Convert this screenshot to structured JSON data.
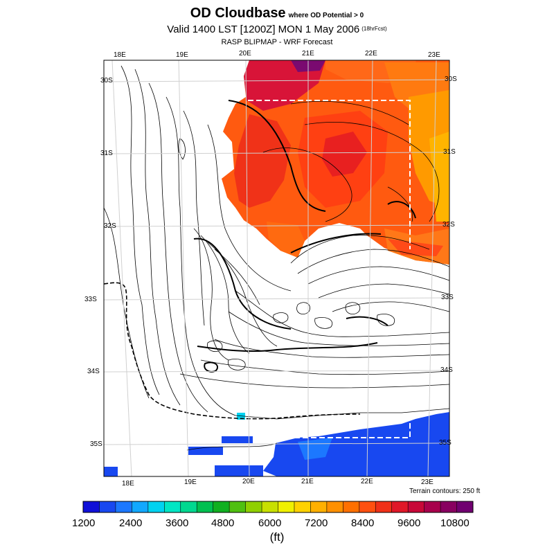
{
  "header": {
    "title": "OD Cloudbase",
    "title_note": "where OD Potential > 0",
    "valid": "Valid 1400 LST [1200Z] MON 1 May 2006",
    "valid_fcst": "(18hrFcst)",
    "model": "RASP BLIPMAP - WRF Forecast"
  },
  "map": {
    "top_lon_labels": [
      "18E",
      "19E",
      "20E",
      "21E",
      "22E",
      "23E"
    ],
    "bottom_lon_labels": [
      "18E",
      "19E",
      "20E",
      "21E",
      "22E",
      "23E"
    ],
    "left_lat_labels": [
      "30S",
      "31S",
      "32S",
      "33S",
      "34S",
      "35S"
    ],
    "right_lat_labels": [
      "30S",
      "31S",
      "32S",
      "33S",
      "34S",
      "35S"
    ],
    "terrain_note": "Terrain contours: 250 ft"
  },
  "legend": {
    "tick_labels": [
      "1200",
      "2400",
      "3600",
      "4800",
      "6000",
      "7200",
      "8400",
      "9600",
      "10800"
    ],
    "units": "(ft)",
    "colors": [
      "#1010d8",
      "#1848f0",
      "#1c78ff",
      "#12a8ff",
      "#00d2f0",
      "#00e6c4",
      "#00d890",
      "#00c050",
      "#10b020",
      "#50c010",
      "#90d000",
      "#c8e000",
      "#f0f000",
      "#ffd200",
      "#ffb000",
      "#ff9000",
      "#ff7000",
      "#ff5010",
      "#f03018",
      "#e01828",
      "#c80838",
      "#a8004c",
      "#880060",
      "#700070"
    ]
  }
}
